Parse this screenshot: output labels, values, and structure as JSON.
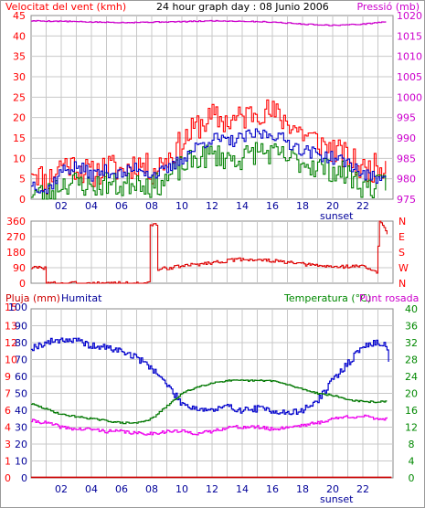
{
  "colors": {
    "border": "#888888",
    "grid": "#c8c8c8",
    "wind_gust": "#ff0000",
    "wind_avg": "#008000",
    "wind_dir_avg": "#0000c8",
    "direction": "#dd0000",
    "pressure": "#cc00cc",
    "humidity": "#0000cc",
    "temperature": "#007700",
    "dewpoint": "#ee00ee",
    "rain": "#cc0000",
    "label_red": "#ff0000",
    "label_magenta": "#cc00cc",
    "label_navy": "#000099",
    "label_green": "#008800"
  },
  "chart_data": [
    {
      "id": "wind",
      "type": "line",
      "title": "24 hour graph day : 08 Junio 2006",
      "left_label": "Velocitat del vent (kmh)",
      "right_label": "Pressió (mb)",
      "x_ticks": [
        "02",
        "04",
        "06",
        "08",
        "10",
        "12",
        "14",
        "16",
        "18",
        "20",
        "22"
      ],
      "x_range": [
        0,
        24
      ],
      "sunset_label": "sunset",
      "left_ticks": [
        "0",
        "5",
        "10",
        "15",
        "20",
        "25",
        "30",
        "35",
        "40",
        "45"
      ],
      "left_range": [
        0,
        45
      ],
      "right_ticks": [
        "975",
        "980",
        "985",
        "990",
        "995",
        "1000",
        "1005",
        "1010",
        "1015",
        "1020"
      ],
      "right_range": [
        975,
        1020
      ],
      "series": [
        {
          "key": "gust",
          "color_key": "wind_gust",
          "seed": 11,
          "amp": 3.5,
          "pts": [
            [
              0,
              8
            ],
            [
              1,
              4
            ],
            [
              2,
              9
            ],
            [
              3,
              8
            ],
            [
              4,
              6
            ],
            [
              5,
              8
            ],
            [
              6,
              7
            ],
            [
              7,
              9
            ],
            [
              8,
              7
            ],
            [
              9,
              10
            ],
            [
              10,
              14
            ],
            [
              11,
              18
            ],
            [
              12,
              20
            ],
            [
              13,
              19
            ],
            [
              14,
              20
            ],
            [
              15,
              22
            ],
            [
              16,
              21
            ],
            [
              17,
              19
            ],
            [
              18,
              16
            ],
            [
              19,
              14
            ],
            [
              20,
              12
            ],
            [
              21,
              10
            ],
            [
              22,
              7
            ],
            [
              23,
              8
            ],
            [
              23.5,
              9
            ]
          ]
        },
        {
          "key": "avg",
          "color_key": "wind_avg",
          "seed": 23,
          "amp": 3,
          "pts": [
            [
              0,
              2
            ],
            [
              1,
              1
            ],
            [
              2,
              4
            ],
            [
              3,
              4
            ],
            [
              4,
              3
            ],
            [
              5,
              4
            ],
            [
              6,
              3
            ],
            [
              7,
              5
            ],
            [
              8,
              3
            ],
            [
              9,
              5
            ],
            [
              10,
              8
            ],
            [
              11,
              10
            ],
            [
              12,
              11
            ],
            [
              13,
              10
            ],
            [
              14,
              10
            ],
            [
              15,
              12
            ],
            [
              16,
              11
            ],
            [
              17,
              10
            ],
            [
              18,
              9
            ],
            [
              19,
              8
            ],
            [
              20,
              7
            ],
            [
              21,
              6
            ],
            [
              22,
              3
            ],
            [
              23,
              3
            ],
            [
              23.5,
              4
            ]
          ]
        },
        {
          "key": "dir_avg",
          "color_key": "wind_dir_avg",
          "seed": 37,
          "amp": 1.6,
          "pts": [
            [
              0,
              4
            ],
            [
              1,
              2
            ],
            [
              2,
              7
            ],
            [
              3,
              8
            ],
            [
              4,
              6
            ],
            [
              5,
              7
            ],
            [
              6,
              6
            ],
            [
              7,
              8
            ],
            [
              8,
              6
            ],
            [
              9,
              7
            ],
            [
              10,
              10
            ],
            [
              11,
              13
            ],
            [
              12,
              15
            ],
            [
              13,
              14
            ],
            [
              14,
              15
            ],
            [
              15,
              16
            ],
            [
              16,
              16
            ],
            [
              17,
              14
            ],
            [
              18,
              12
            ],
            [
              19,
              11
            ],
            [
              20,
              10
            ],
            [
              21,
              9
            ],
            [
              22,
              6
            ],
            [
              23,
              5
            ],
            [
              23.5,
              7
            ]
          ]
        },
        {
          "key": "pressure",
          "color_key": "pressure",
          "axis": "right",
          "seed": 5,
          "amp": 0.12,
          "pts": [
            [
              0,
              1018.7
            ],
            [
              2,
              1018.6
            ],
            [
              4,
              1018.4
            ],
            [
              6,
              1018.3
            ],
            [
              8,
              1018.4
            ],
            [
              10,
              1018.5
            ],
            [
              12,
              1018.7
            ],
            [
              14,
              1018.6
            ],
            [
              16,
              1018.4
            ],
            [
              18,
              1017.9
            ],
            [
              20,
              1017.6
            ],
            [
              22,
              1017.9
            ],
            [
              23.5,
              1018.5
            ]
          ]
        }
      ]
    },
    {
      "id": "direction",
      "type": "line",
      "left_ticks": [
        "0",
        "90",
        "180",
        "270",
        "360"
      ],
      "left_range": [
        0,
        360
      ],
      "right_labels": [
        "N",
        "W",
        "S",
        "E",
        "N"
      ],
      "series": [
        {
          "key": "dir",
          "color_key": "direction",
          "seed": 3,
          "amp": 10,
          "pts": [
            [
              0,
              90
            ],
            [
              0.95,
              90
            ],
            [
              1.0,
              0
            ],
            [
              7.8,
              0
            ],
            [
              7.9,
              340
            ],
            [
              8.3,
              340
            ],
            [
              8.4,
              80
            ],
            [
              10,
              100
            ],
            [
              12,
              120
            ],
            [
              14,
              140
            ],
            [
              16,
              130
            ],
            [
              18,
              110
            ],
            [
              20,
              95
            ],
            [
              22,
              100
            ],
            [
              22.9,
              60
            ],
            [
              23.1,
              360
            ],
            [
              23.6,
              290
            ]
          ]
        }
      ]
    },
    {
      "id": "meteo",
      "type": "line",
      "left_label": "Pluja (mm)",
      "left_label2": "Humitat",
      "right_label": "Temperatura (°C)",
      "right_label2": "Punt rosada",
      "left_ticks_rain": [
        "0",
        "1",
        "3",
        "4",
        "6",
        "7",
        "9",
        "10",
        "12",
        "13",
        "15"
      ],
      "left_ticks_hum": [
        "0",
        "10",
        "20",
        "30",
        "40",
        "50",
        "60",
        "70",
        "80",
        "90",
        "100"
      ],
      "left_range": [
        0,
        100
      ],
      "right_ticks": [
        "0",
        "4",
        "8",
        "12",
        "16",
        "20",
        "24",
        "28",
        "32",
        "36",
        "40"
      ],
      "right_range": [
        0,
        40
      ],
      "series": [
        {
          "key": "humidity",
          "color_key": "humidity",
          "axis": "left",
          "seed": 19,
          "amp": 2,
          "pts": [
            [
              0,
              77
            ],
            [
              1,
              80
            ],
            [
              2,
              82
            ],
            [
              3,
              81
            ],
            [
              4,
              78
            ],
            [
              5,
              77
            ],
            [
              6,
              75
            ],
            [
              7,
              71
            ],
            [
              8,
              65
            ],
            [
              9,
              55
            ],
            [
              9.7,
              47
            ],
            [
              10,
              44
            ],
            [
              11,
              41
            ],
            [
              12,
              40
            ],
            [
              13,
              42
            ],
            [
              14,
              40
            ],
            [
              15,
              41
            ],
            [
              16,
              40
            ],
            [
              17,
              38
            ],
            [
              18,
              40
            ],
            [
              19,
              46
            ],
            [
              20,
              58
            ],
            [
              21,
              68
            ],
            [
              22,
              78
            ],
            [
              23,
              80
            ],
            [
              23.5,
              79
            ],
            [
              23.7,
              70
            ]
          ]
        },
        {
          "key": "temperature",
          "color_key": "temperature",
          "axis": "right",
          "seed": 29,
          "amp": 0.2,
          "pts": [
            [
              0,
              17.5
            ],
            [
              2,
              15
            ],
            [
              4,
              14
            ],
            [
              5,
              13.5
            ],
            [
              6,
              13
            ],
            [
              7,
              13
            ],
            [
              8,
              14
            ],
            [
              9,
              17
            ],
            [
              10,
              20
            ],
            [
              11,
              21.5
            ],
            [
              12,
              22.5
            ],
            [
              13,
              23
            ],
            [
              14,
              23
            ],
            [
              15,
              23
            ],
            [
              16,
              23
            ],
            [
              17,
              22
            ],
            [
              18,
              21
            ],
            [
              19,
              20
            ],
            [
              20,
              19.5
            ],
            [
              21,
              18.5
            ],
            [
              22,
              18
            ],
            [
              23,
              18
            ],
            [
              23.6,
              18
            ]
          ]
        },
        {
          "key": "dewpoint",
          "color_key": "dewpoint",
          "axis": "right",
          "seed": 41,
          "amp": 0.4,
          "pts": [
            [
              0,
              13.5
            ],
            [
              1,
              13
            ],
            [
              2,
              12
            ],
            [
              3,
              11.5
            ],
            [
              4,
              11.5
            ],
            [
              5,
              11
            ],
            [
              6,
              11
            ],
            [
              7,
              10.5
            ],
            [
              8,
              10.5
            ],
            [
              9,
              11
            ],
            [
              10,
              11
            ],
            [
              11,
              10.5
            ],
            [
              12,
              11
            ],
            [
              13,
              12
            ],
            [
              14,
              12
            ],
            [
              15,
              12
            ],
            [
              16,
              11.5
            ],
            [
              17,
              12
            ],
            [
              18,
              12.5
            ],
            [
              19,
              13
            ],
            [
              20,
              14
            ],
            [
              21,
              14.5
            ],
            [
              22,
              14.5
            ],
            [
              23,
              14
            ],
            [
              23.6,
              14
            ]
          ]
        },
        {
          "key": "rain",
          "color_key": "rain",
          "axis": "left",
          "seed": 1,
          "amp": 0,
          "pts": [
            [
              0,
              0.3
            ],
            [
              23.9,
              0.3
            ]
          ]
        }
      ],
      "x_ticks": [
        "02",
        "04",
        "06",
        "08",
        "10",
        "12",
        "14",
        "16",
        "18",
        "20",
        "22"
      ],
      "sunset_label": "sunset"
    }
  ]
}
